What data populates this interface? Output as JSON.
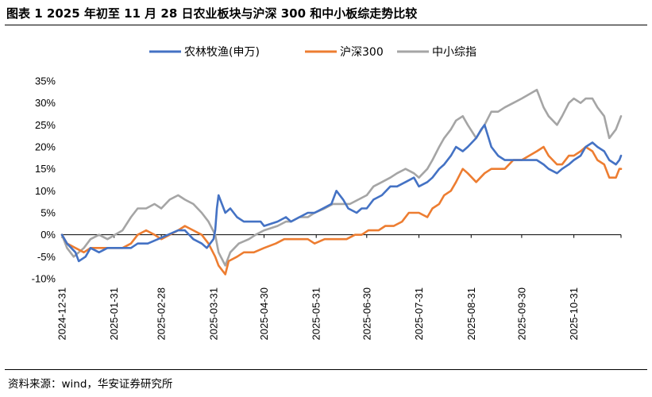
{
  "figure_title": "图表 1 2025 年初至 11 月 28 日农业板块与沪深 300 和中小板综走势比较",
  "source_note": "资料来源：wind，华安证券研究所",
  "chart_data": {
    "type": "line",
    "title": "",
    "xlabel": "",
    "ylabel": "",
    "legend_position": "top",
    "grid": false,
    "ylim": [
      -10,
      35
    ],
    "y_ticks": [
      -10,
      -5,
      0,
      5,
      10,
      15,
      20,
      25,
      30,
      35
    ],
    "y_tick_labels": [
      "-10%",
      "-5%",
      "0%",
      "5%",
      "10%",
      "15%",
      "20%",
      "25%",
      "30%",
      "35%"
    ],
    "xlim": [
      "2024-12-31",
      "2025-11-28"
    ],
    "x_tick_labels": [
      "2024-12-31",
      "2025-01-31",
      "2025-02-28",
      "2025-03-31",
      "2025-04-30",
      "2025-05-31",
      "2025-06-30",
      "2025-07-31",
      "2025-08-31",
      "2025-09-30",
      "2025-10-31"
    ],
    "series": [
      {
        "name": "农林牧渔(申万)",
        "color": "#4472C4",
        "points": [
          [
            "2024-12-31",
            0
          ],
          [
            "2025-01-03",
            -2
          ],
          [
            "2025-01-08",
            -4
          ],
          [
            "2025-01-10",
            -6
          ],
          [
            "2025-01-14",
            -5
          ],
          [
            "2025-01-17",
            -3
          ],
          [
            "2025-01-22",
            -4
          ],
          [
            "2025-01-27",
            -3
          ],
          [
            "2025-02-05",
            -3
          ],
          [
            "2025-02-10",
            -3
          ],
          [
            "2025-02-14",
            -2
          ],
          [
            "2025-02-20",
            -2
          ],
          [
            "2025-02-26",
            -1
          ],
          [
            "2025-03-04",
            0
          ],
          [
            "2025-03-10",
            1
          ],
          [
            "2025-03-14",
            1
          ],
          [
            "2025-03-19",
            -1
          ],
          [
            "2025-03-24",
            -2
          ],
          [
            "2025-03-27",
            -3
          ],
          [
            "2025-03-31",
            -1
          ],
          [
            "2025-04-01",
            1
          ],
          [
            "2025-04-02",
            6
          ],
          [
            "2025-04-03",
            9
          ],
          [
            "2025-04-07",
            5
          ],
          [
            "2025-04-10",
            6
          ],
          [
            "2025-04-14",
            4
          ],
          [
            "2025-04-18",
            3
          ],
          [
            "2025-04-23",
            3
          ],
          [
            "2025-04-28",
            3
          ],
          [
            "2025-04-30",
            2
          ],
          [
            "2025-05-08",
            3
          ],
          [
            "2025-05-13",
            4
          ],
          [
            "2025-05-16",
            3
          ],
          [
            "2025-05-21",
            4
          ],
          [
            "2025-05-26",
            5
          ],
          [
            "2025-05-30",
            5
          ],
          [
            "2025-06-04",
            6
          ],
          [
            "2025-06-09",
            7
          ],
          [
            "2025-06-12",
            10
          ],
          [
            "2025-06-16",
            8
          ],
          [
            "2025-06-19",
            6
          ],
          [
            "2025-06-24",
            5
          ],
          [
            "2025-06-27",
            6
          ],
          [
            "2025-06-30",
            6
          ],
          [
            "2025-07-04",
            8
          ],
          [
            "2025-07-09",
            9
          ],
          [
            "2025-07-14",
            11
          ],
          [
            "2025-07-18",
            11
          ],
          [
            "2025-07-23",
            12
          ],
          [
            "2025-07-28",
            13
          ],
          [
            "2025-07-31",
            11
          ],
          [
            "2025-08-05",
            12
          ],
          [
            "2025-08-08",
            13
          ],
          [
            "2025-08-12",
            15
          ],
          [
            "2025-08-15",
            16
          ],
          [
            "2025-08-19",
            18
          ],
          [
            "2025-08-22",
            20
          ],
          [
            "2025-08-26",
            19
          ],
          [
            "2025-08-29",
            20
          ],
          [
            "2025-09-03",
            22
          ],
          [
            "2025-09-06",
            24
          ],
          [
            "2025-09-08",
            25
          ],
          [
            "2025-09-12",
            20
          ],
          [
            "2025-09-16",
            18
          ],
          [
            "2025-09-20",
            17
          ],
          [
            "2025-09-25",
            17
          ],
          [
            "2025-09-30",
            17
          ],
          [
            "2025-10-09",
            17
          ],
          [
            "2025-10-13",
            16
          ],
          [
            "2025-10-16",
            15
          ],
          [
            "2025-10-21",
            14
          ],
          [
            "2025-10-24",
            15
          ],
          [
            "2025-10-28",
            16
          ],
          [
            "2025-10-31",
            17
          ],
          [
            "2025-11-04",
            18
          ],
          [
            "2025-11-07",
            20
          ],
          [
            "2025-11-11",
            21
          ],
          [
            "2025-11-14",
            20
          ],
          [
            "2025-11-18",
            19
          ],
          [
            "2025-11-21",
            17
          ],
          [
            "2025-11-25",
            16
          ],
          [
            "2025-11-27",
            17
          ],
          [
            "2025-11-28",
            18
          ]
        ]
      },
      {
        "name": "沪深300",
        "color": "#ED7D31",
        "points": [
          [
            "2024-12-31",
            0
          ],
          [
            "2025-01-03",
            -2
          ],
          [
            "2025-01-08",
            -3
          ],
          [
            "2025-01-13",
            -4
          ],
          [
            "2025-01-17",
            -3
          ],
          [
            "2025-01-22",
            -3
          ],
          [
            "2025-01-27",
            -3
          ],
          [
            "2025-02-05",
            -3
          ],
          [
            "2025-02-10",
            -2
          ],
          [
            "2025-02-14",
            0
          ],
          [
            "2025-02-19",
            1
          ],
          [
            "2025-02-24",
            0
          ],
          [
            "2025-02-28",
            -1
          ],
          [
            "2025-03-05",
            0
          ],
          [
            "2025-03-10",
            1
          ],
          [
            "2025-03-14",
            2
          ],
          [
            "2025-03-19",
            1
          ],
          [
            "2025-03-24",
            0
          ],
          [
            "2025-03-28",
            -2
          ],
          [
            "2025-04-01",
            -5
          ],
          [
            "2025-04-03",
            -7
          ],
          [
            "2025-04-07",
            -9
          ],
          [
            "2025-04-09",
            -6
          ],
          [
            "2025-04-14",
            -5
          ],
          [
            "2025-04-18",
            -4
          ],
          [
            "2025-04-24",
            -4
          ],
          [
            "2025-04-30",
            -3
          ],
          [
            "2025-05-07",
            -2
          ],
          [
            "2025-05-12",
            -1
          ],
          [
            "2025-05-16",
            -1
          ],
          [
            "2025-05-21",
            -1
          ],
          [
            "2025-05-26",
            -1
          ],
          [
            "2025-05-30",
            -2
          ],
          [
            "2025-06-05",
            -1
          ],
          [
            "2025-06-10",
            -1
          ],
          [
            "2025-06-13",
            -1
          ],
          [
            "2025-06-18",
            -1
          ],
          [
            "2025-06-23",
            0
          ],
          [
            "2025-06-27",
            0
          ],
          [
            "2025-07-01",
            1
          ],
          [
            "2025-07-07",
            1
          ],
          [
            "2025-07-11",
            2
          ],
          [
            "2025-07-16",
            2
          ],
          [
            "2025-07-21",
            3
          ],
          [
            "2025-07-25",
            5
          ],
          [
            "2025-07-31",
            5
          ],
          [
            "2025-08-05",
            4
          ],
          [
            "2025-08-08",
            6
          ],
          [
            "2025-08-12",
            7
          ],
          [
            "2025-08-15",
            9
          ],
          [
            "2025-08-19",
            10
          ],
          [
            "2025-08-22",
            12
          ],
          [
            "2025-08-26",
            15
          ],
          [
            "2025-08-29",
            14
          ],
          [
            "2025-09-03",
            12
          ],
          [
            "2025-09-08",
            14
          ],
          [
            "2025-09-12",
            15
          ],
          [
            "2025-09-16",
            15
          ],
          [
            "2025-09-20",
            15
          ],
          [
            "2025-09-25",
            17
          ],
          [
            "2025-09-30",
            17
          ],
          [
            "2025-10-09",
            19
          ],
          [
            "2025-10-13",
            20
          ],
          [
            "2025-10-16",
            18
          ],
          [
            "2025-10-21",
            16
          ],
          [
            "2025-10-24",
            16
          ],
          [
            "2025-10-28",
            18
          ],
          [
            "2025-10-31",
            18
          ],
          [
            "2025-11-04",
            19
          ],
          [
            "2025-11-07",
            20
          ],
          [
            "2025-11-11",
            19
          ],
          [
            "2025-11-14",
            17
          ],
          [
            "2025-11-18",
            16
          ],
          [
            "2025-11-21",
            13
          ],
          [
            "2025-11-25",
            13
          ],
          [
            "2025-11-27",
            15
          ],
          [
            "2025-11-28",
            15
          ]
        ]
      },
      {
        "name": "中小综指",
        "color": "#A5A5A5",
        "points": [
          [
            "2024-12-31",
            0
          ],
          [
            "2025-01-03",
            -3
          ],
          [
            "2025-01-07",
            -5
          ],
          [
            "2025-01-10",
            -4
          ],
          [
            "2025-01-13",
            -3
          ],
          [
            "2025-01-17",
            -1
          ],
          [
            "2025-01-22",
            0
          ],
          [
            "2025-01-27",
            -1
          ],
          [
            "2025-02-05",
            1
          ],
          [
            "2025-02-10",
            4
          ],
          [
            "2025-02-14",
            6
          ],
          [
            "2025-02-19",
            6
          ],
          [
            "2025-02-24",
            7
          ],
          [
            "2025-02-28",
            6
          ],
          [
            "2025-03-05",
            8
          ],
          [
            "2025-03-10",
            9
          ],
          [
            "2025-03-14",
            8
          ],
          [
            "2025-03-19",
            7
          ],
          [
            "2025-03-24",
            5
          ],
          [
            "2025-03-28",
            3
          ],
          [
            "2025-04-01",
            0
          ],
          [
            "2025-04-03",
            -4
          ],
          [
            "2025-04-07",
            -7
          ],
          [
            "2025-04-10",
            -4
          ],
          [
            "2025-04-15",
            -2
          ],
          [
            "2025-04-21",
            -1
          ],
          [
            "2025-04-25",
            0
          ],
          [
            "2025-04-30",
            1
          ],
          [
            "2025-05-08",
            2
          ],
          [
            "2025-05-13",
            3
          ],
          [
            "2025-05-16",
            3
          ],
          [
            "2025-05-21",
            4
          ],
          [
            "2025-05-26",
            4
          ],
          [
            "2025-05-30",
            5
          ],
          [
            "2025-06-05",
            6
          ],
          [
            "2025-06-10",
            7
          ],
          [
            "2025-06-16",
            7
          ],
          [
            "2025-06-20",
            7
          ],
          [
            "2025-06-25",
            8
          ],
          [
            "2025-06-30",
            9
          ],
          [
            "2025-07-04",
            11
          ],
          [
            "2025-07-09",
            12
          ],
          [
            "2025-07-14",
            13
          ],
          [
            "2025-07-18",
            14
          ],
          [
            "2025-07-23",
            15
          ],
          [
            "2025-07-28",
            14
          ],
          [
            "2025-07-31",
            13
          ],
          [
            "2025-08-05",
            15
          ],
          [
            "2025-08-08",
            17
          ],
          [
            "2025-08-12",
            20
          ],
          [
            "2025-08-15",
            22
          ],
          [
            "2025-08-19",
            24
          ],
          [
            "2025-08-22",
            26
          ],
          [
            "2025-08-26",
            27
          ],
          [
            "2025-08-29",
            25
          ],
          [
            "2025-09-03",
            22
          ],
          [
            "2025-09-08",
            25
          ],
          [
            "2025-09-12",
            28
          ],
          [
            "2025-09-16",
            28
          ],
          [
            "2025-09-20",
            29
          ],
          [
            "2025-09-25",
            30
          ],
          [
            "2025-09-30",
            31
          ],
          [
            "2025-10-09",
            33
          ],
          [
            "2025-10-13",
            29
          ],
          [
            "2025-10-16",
            27
          ],
          [
            "2025-10-21",
            25
          ],
          [
            "2025-10-24",
            27
          ],
          [
            "2025-10-28",
            30
          ],
          [
            "2025-10-31",
            31
          ],
          [
            "2025-11-04",
            30
          ],
          [
            "2025-11-07",
            31
          ],
          [
            "2025-11-11",
            31
          ],
          [
            "2025-11-14",
            29
          ],
          [
            "2025-11-18",
            27
          ],
          [
            "2025-11-21",
            22
          ],
          [
            "2025-11-25",
            24
          ],
          [
            "2025-11-27",
            26
          ],
          [
            "2025-11-28",
            27
          ]
        ]
      }
    ]
  }
}
